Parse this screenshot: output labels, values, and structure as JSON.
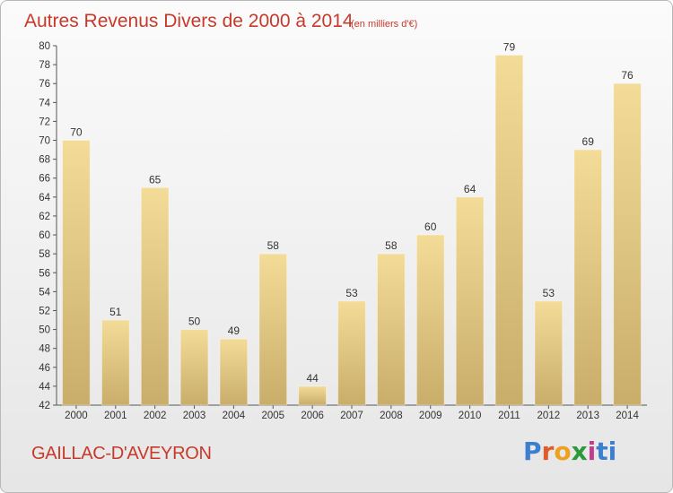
{
  "title": {
    "main": "Autres Revenus Divers de 2000 à 2014",
    "sub": "(en milliers d'€)"
  },
  "location": "GAILLAC-D'AVEYRON",
  "logo": {
    "text": "Proxiti",
    "colors": [
      "#3b7fd0",
      "#e05a2a",
      "#f0a020",
      "#2c9a3a",
      "#c43c8c",
      "#3b7fd0"
    ]
  },
  "chart_data": {
    "type": "bar",
    "title": "Autres Revenus Divers de 2000 à 2014",
    "subtitle": "(en milliers d'€)",
    "categories": [
      "2000",
      "2001",
      "2002",
      "2003",
      "2004",
      "2005",
      "2006",
      "2007",
      "2008",
      "2009",
      "2010",
      "2011",
      "2012",
      "2013",
      "2014"
    ],
    "values": [
      70,
      51,
      65,
      50,
      49,
      58,
      44,
      53,
      58,
      60,
      64,
      79,
      53,
      69,
      76
    ],
    "xlabel": "",
    "ylabel": "",
    "ylim": [
      42,
      80
    ],
    "ytick_step": 2,
    "grid": false,
    "data_labels": true,
    "bar_color_top": "#f3dc98",
    "bar_color_bottom": "#c9ad6a"
  }
}
